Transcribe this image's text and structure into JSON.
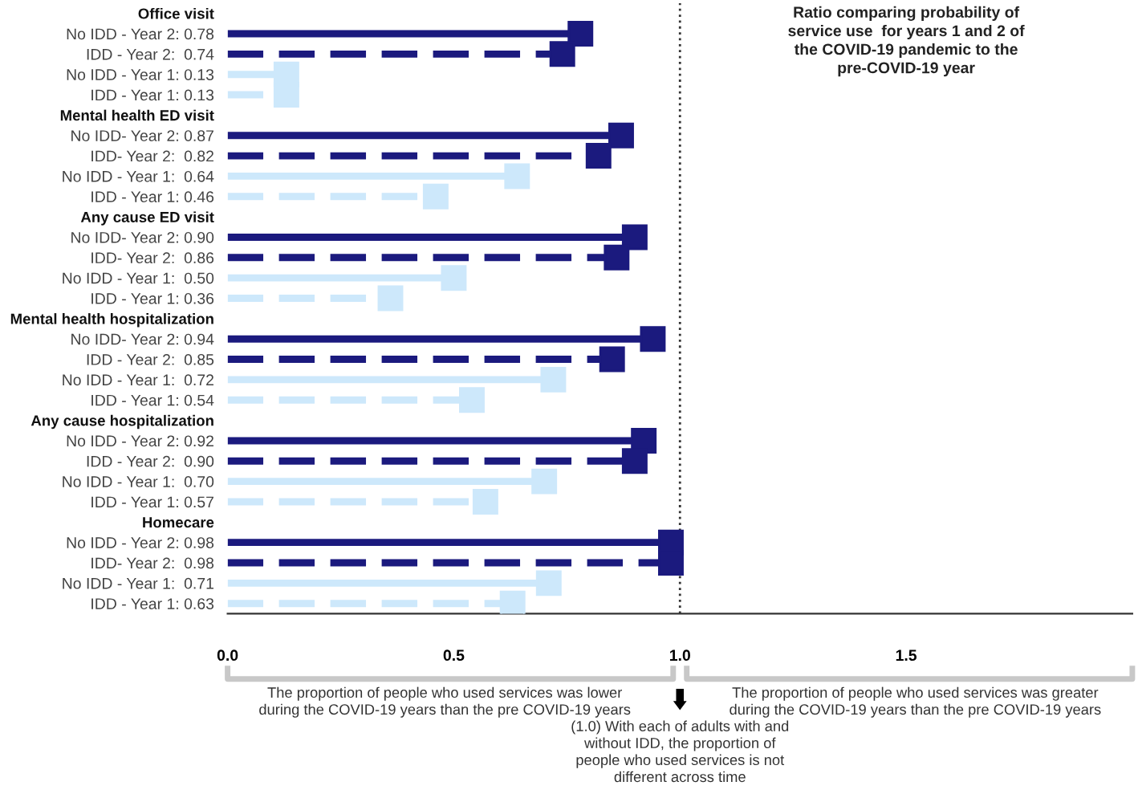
{
  "chart_data": {
    "type": "lollipop",
    "orientation": "horizontal",
    "title": "Ratio comparing probability of\nservice use  for years 1 and 2 of\nthe COVID-19 pandemic to the\npre-COVID-19 year",
    "categories": [
      "Office visit",
      "No IDD - Year 2: 0.78",
      "IDD - Year 2:  0.74",
      "No IDD - Year 1: 0.13",
      "IDD - Year 1: 0.13",
      "Mental health ED visit",
      "No IDD- Year 2: 0.87",
      "IDD- Year 2:  0.82",
      "No IDD - Year 1:  0.64",
      "IDD - Year 1: 0.46",
      "Any cause ED visit",
      "No IDD- Year 2: 0.90",
      "IDD- Year 2:  0.86",
      "No IDD - Year 1:  0.50",
      "IDD - Year 1: 0.36",
      "Mental health hospitalization",
      "No IDD- Year 2: 0.94",
      "IDD - Year 2:  0.85",
      "No IDD - Year 1:  0.72",
      "IDD - Year 1: 0.54",
      "Any cause hospitalization",
      "No IDD - Year 2: 0.92",
      "IDD - Year 2:  0.90",
      "No IDD - Year 1:  0.70",
      "IDD - Year 1: 0.57",
      "Homecare",
      "No IDD - Year 2: 0.98",
      "IDD- Year 2:  0.98",
      "No IDD - Year 1:  0.71",
      "IDD - Year 1: 0.63"
    ],
    "series": [
      {
        "color": "#1b1a7e",
        "line_style": "solid",
        "values": [
          null,
          0.78,
          null,
          null,
          null,
          null,
          0.87,
          null,
          null,
          null,
          null,
          0.9,
          null,
          null,
          null,
          null,
          0.94,
          null,
          null,
          null,
          null,
          0.92,
          null,
          null,
          null,
          null,
          0.98,
          null,
          null,
          null
        ]
      },
      {
        "color": "#1b1a7e",
        "line_style": "dashed",
        "values": [
          null,
          null,
          0.74,
          null,
          null,
          null,
          null,
          0.82,
          null,
          null,
          null,
          null,
          0.86,
          null,
          null,
          null,
          null,
          0.85,
          null,
          null,
          null,
          null,
          0.9,
          null,
          null,
          null,
          null,
          0.98,
          null,
          null
        ]
      },
      {
        "color": "#cde8fb",
        "line_style": "solid",
        "values": [
          null,
          null,
          null,
          0.13,
          null,
          null,
          null,
          null,
          0.64,
          null,
          null,
          null,
          null,
          0.5,
          null,
          null,
          null,
          null,
          0.72,
          null,
          null,
          null,
          null,
          0.7,
          null,
          null,
          null,
          null,
          0.71,
          null
        ]
      },
      {
        "color": "#cde8fb",
        "line_style": "dashed",
        "values": [
          null,
          null,
          null,
          null,
          0.13,
          null,
          null,
          null,
          null,
          0.46,
          null,
          null,
          null,
          null,
          0.36,
          null,
          null,
          null,
          null,
          0.54,
          null,
          null,
          null,
          null,
          0.57,
          null,
          null,
          null,
          null,
          0.63
        ]
      }
    ],
    "marker": "square",
    "xlim": [
      0,
      2
    ],
    "xticks": [
      {
        "value": 0,
        "label": "0.0"
      },
      0.5,
      {
        "value": 1,
        "label": "1.0"
      },
      1.5
    ],
    "ref_lines": [
      {
        "axis": "x",
        "value": 1,
        "color": "#333333",
        "line_style": "dotted"
      }
    ],
    "grid": false,
    "annotations": [
      "The proportion of people who used services was lower\nduring the COVID-19 years than the pre COVID-19 years",
      "The proportion of people who used services was greater\nduring the COVID-19 years than the pre COVID-19 years",
      "(1.0) With each of adults with and\nwithout IDD, the proportion of\npeople who used services is not\ndifferent across time"
    ]
  }
}
